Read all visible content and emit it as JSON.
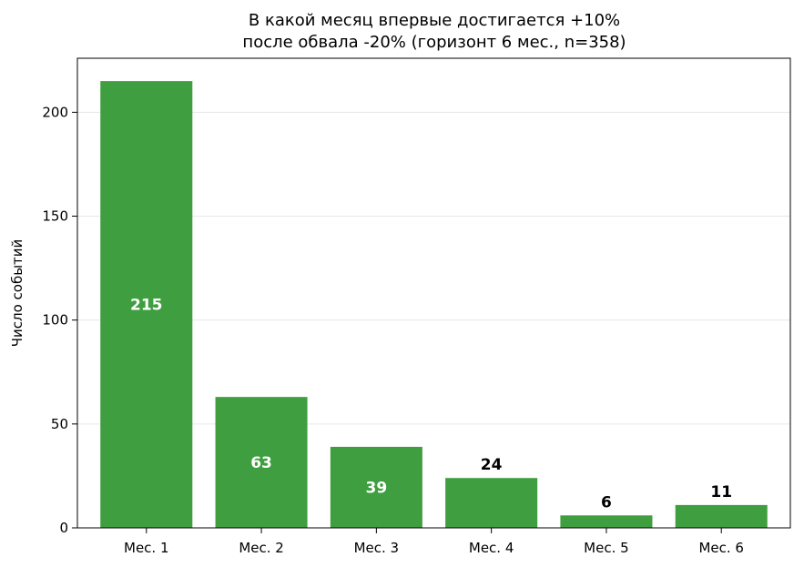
{
  "chart_data": {
    "type": "bar",
    "title_lines": [
      "В какой месяц впервые достигается +10%",
      "после обвала -20% (горизонт 6 мес., n=358)"
    ],
    "xlabel": "",
    "ylabel": "Число событий",
    "categories": [
      "Мес. 1",
      "Мес. 2",
      "Мес. 3",
      "Мес. 4",
      "Мес. 5",
      "Мес. 6"
    ],
    "values": [
      215,
      63,
      39,
      24,
      6,
      11
    ],
    "data_labels": [
      "215",
      "63",
      "39",
      "24",
      "6",
      "11"
    ],
    "ylim": [
      0,
      226
    ],
    "yticks": [
      0,
      50,
      100,
      150,
      200
    ],
    "ytick_labels": [
      "0",
      "50",
      "100",
      "150",
      "200"
    ],
    "grid": "horizontal",
    "legend": "none",
    "bar_color": "#3f9e3f",
    "inside_label_color": "#ffffff",
    "outside_label_color": "#000000"
  }
}
